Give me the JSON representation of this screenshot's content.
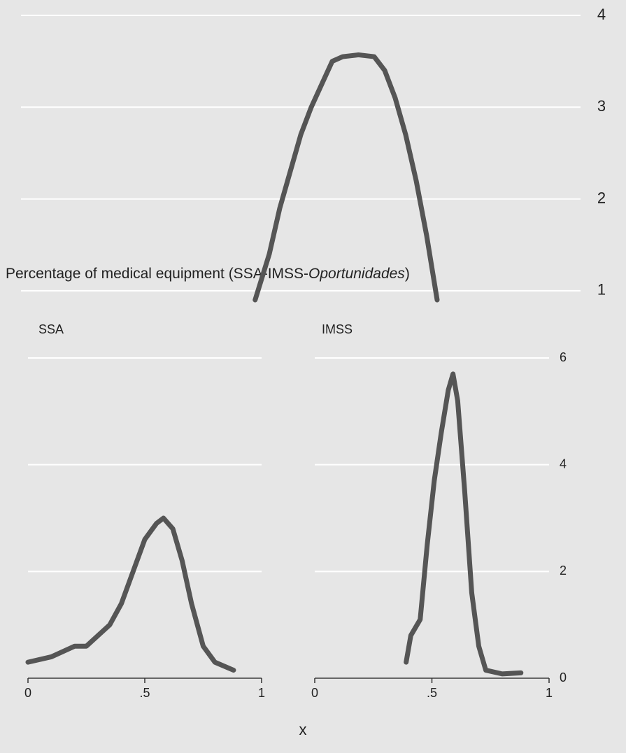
{
  "title": {
    "text": "Percentage of medical equipment (SSA-IMSS-",
    "italic": "Oportunidades",
    "end": ")"
  },
  "xlabel": "x",
  "chart_data": [
    {
      "type": "line",
      "y_axis": "right",
      "x": [
        0.433,
        0.46,
        0.48,
        0.5,
        0.52,
        0.54,
        0.56,
        0.58,
        0.6,
        0.63,
        0.66,
        0.68,
        0.7,
        0.72,
        0.74,
        0.76,
        0.78
      ],
      "series": [
        {
          "color": "#555555",
          "values": [
            0.9,
            1.4,
            1.9,
            2.3,
            2.7,
            3.0,
            3.25,
            3.5,
            3.55,
            3.57,
            3.55,
            3.4,
            3.1,
            2.7,
            2.2,
            1.6,
            0.9
          ]
        }
      ],
      "xlim": [
        0,
        1
      ],
      "ylim": [
        0.9,
        4
      ],
      "yticks": [
        1,
        2,
        3,
        4
      ],
      "grid": true
    },
    {
      "type": "line",
      "title": "SSA",
      "y_axis": "none",
      "x": [
        0,
        0.1,
        0.2,
        0.25,
        0.3,
        0.35,
        0.4,
        0.45,
        0.5,
        0.55,
        0.58,
        0.62,
        0.66,
        0.7,
        0.75,
        0.8,
        0.88
      ],
      "series": [
        {
          "color": "#555555",
          "values": [
            0.3,
            0.4,
            0.6,
            0.6,
            0.8,
            1.0,
            1.4,
            2.0,
            2.6,
            2.9,
            3.0,
            2.8,
            2.2,
            1.4,
            0.6,
            0.3,
            0.15
          ]
        }
      ],
      "xlim": [
        0,
        1
      ],
      "xticks": [
        0,
        {
          "value": 0.5,
          "label": ".5"
        },
        1
      ],
      "ylim": [
        0,
        6
      ],
      "yticks": [
        0,
        2,
        4,
        6
      ],
      "grid": true
    },
    {
      "type": "line",
      "title": "IMSS",
      "y_axis": "right",
      "x": [
        0.39,
        0.41,
        0.45,
        0.48,
        0.51,
        0.54,
        0.57,
        0.59,
        0.61,
        0.64,
        0.67,
        0.7,
        0.73,
        0.8,
        0.88
      ],
      "series": [
        {
          "color": "#555555",
          "values": [
            0.3,
            0.8,
            1.1,
            2.5,
            3.7,
            4.6,
            5.4,
            5.7,
            5.2,
            3.5,
            1.6,
            0.6,
            0.15,
            0.08,
            0.1
          ]
        }
      ],
      "xlim": [
        0,
        1
      ],
      "xticks": [
        0,
        {
          "value": 0.5,
          "label": ".5"
        },
        1
      ],
      "ylim": [
        0,
        6
      ],
      "yticks": [
        0,
        2,
        4,
        6
      ],
      "grid": true
    }
  ]
}
